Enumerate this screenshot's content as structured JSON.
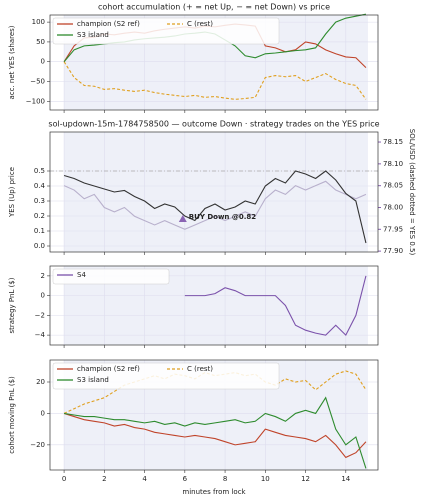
{
  "shared_x": {
    "xlim": [
      -0.7,
      15.6
    ],
    "xticks": [
      0,
      2,
      4,
      6,
      8,
      10,
      12,
      14
    ],
    "xlabel": "minutes from lock",
    "span": [
      0,
      15.1
    ],
    "grid": true
  },
  "chart_data": [
    {
      "type": "line",
      "title": "cohort accumulation (+ = net Up, − = net Down) vs price",
      "ylabel": "acc. net YES (shares)",
      "ylim": [
        -122,
        118
      ],
      "yticks": [
        100,
        50,
        0,
        {
          "value": -50,
          "label": "−50"
        },
        {
          "value": -100,
          "label": "−100"
        }
      ],
      "legend": "upper left",
      "x": [
        0,
        0.5,
        1,
        1.5,
        2,
        2.5,
        3,
        3.5,
        4,
        4.5,
        5,
        5.5,
        6,
        6.5,
        7,
        7.5,
        8,
        8.5,
        9,
        9.5,
        10,
        10.5,
        11,
        11.5,
        12,
        12.5,
        13,
        13.5,
        14,
        14.5,
        15
      ],
      "series": [
        {
          "name": "champion (S2 ref)",
          "color": "#c0442a",
          "linestyle": "solid",
          "values": [
            0,
            40,
            60,
            62,
            70,
            68,
            72,
            75,
            72,
            78,
            82,
            85,
            88,
            85,
            90,
            88,
            92,
            95,
            93,
            90,
            40,
            35,
            25,
            30,
            50,
            45,
            30,
            20,
            12,
            10,
            -15
          ]
        },
        {
          "name": "C (rest)",
          "color": "#e0a020",
          "linestyle": "dashed",
          "values": [
            0,
            -40,
            -60,
            -62,
            -70,
            -68,
            -72,
            -75,
            -72,
            -78,
            -82,
            -85,
            -88,
            -85,
            -90,
            -88,
            -92,
            -95,
            -93,
            -90,
            -40,
            -35,
            -38,
            -35,
            -50,
            -40,
            -30,
            -45,
            -55,
            -60,
            -95
          ]
        },
        {
          "name": "S3 island",
          "color": "#2e8b2e",
          "linestyle": "solid",
          "values": [
            0,
            30,
            40,
            42,
            45,
            48,
            50,
            55,
            58,
            60,
            62,
            65,
            70,
            72,
            75,
            70,
            55,
            40,
            15,
            10,
            20,
            22,
            25,
            28,
            30,
            35,
            70,
            100,
            110,
            115,
            120
          ]
        }
      ]
    },
    {
      "type": "line",
      "title": "sol-updown-15m-1784758500 — outcome Down · strategy trades on the YES price",
      "ylabel": "YES (Up) price",
      "ylim": [
        -0.04,
        0.76
      ],
      "yticks": [
        {
          "value": 0,
          "label": "0.0"
        },
        0.1,
        0.2,
        0.3,
        0.4,
        0.5
      ],
      "y2label": "SOL/USD (dashed dotted = YES 0.5)",
      "y2color": "#8a63b3",
      "y2lim": [
        77.898,
        78.173
      ],
      "y2ticks": [
        {
          "value": 77.9,
          "label": "77.90"
        },
        {
          "value": 77.95,
          "label": "77.95"
        },
        {
          "value": 78,
          "label": "78.00"
        },
        {
          "value": 78.05,
          "label": "78.05"
        },
        {
          "value": 78.1,
          "label": "78.10"
        },
        {
          "value": 78.15,
          "label": "78.15"
        }
      ],
      "hline": 0.5,
      "x": [
        0,
        0.5,
        1,
        1.5,
        2,
        2.5,
        3,
        3.5,
        4,
        4.5,
        5,
        5.5,
        6,
        6.5,
        7,
        7.5,
        8,
        8.5,
        9,
        9.5,
        10,
        10.5,
        11,
        11.5,
        12,
        12.5,
        13,
        13.5,
        14,
        14.5,
        15
      ],
      "series": [
        {
          "color": "#b8b0cc",
          "linestyle": "solid",
          "axis": "y2",
          "values": [
            78.05,
            78.04,
            78.02,
            78.03,
            78,
            77.99,
            78,
            77.98,
            77.97,
            77.96,
            77.97,
            77.96,
            77.95,
            77.96,
            77.97,
            77.98,
            77.97,
            77.98,
            77.99,
            77.98,
            78.02,
            78.04,
            78.03,
            78.05,
            78.04,
            78.05,
            78.06,
            78.04,
            78.03,
            78.02,
            78.03
          ]
        },
        {
          "color": "#333333",
          "linestyle": "solid",
          "values": [
            0.47,
            0.45,
            0.42,
            0.4,
            0.38,
            0.36,
            0.37,
            0.33,
            0.3,
            0.25,
            0.28,
            0.26,
            0.2,
            0.17,
            0.25,
            0.28,
            0.24,
            0.26,
            0.3,
            0.28,
            0.4,
            0.45,
            0.42,
            0.5,
            0.48,
            0.45,
            0.5,
            0.44,
            0.35,
            0.3,
            0.02
          ]
        }
      ],
      "annotations": [
        {
          "text": "BUY Down @0.82",
          "x": 5.9,
          "y": 0.18,
          "color": "#8a63b3"
        }
      ]
    },
    {
      "type": "line",
      "ylabel": "strategy PnL ($)",
      "ylim": [
        -5,
        3
      ],
      "yticks": [
        2,
        0,
        {
          "value": -2,
          "label": "−2"
        },
        {
          "value": -4,
          "label": "−4"
        }
      ],
      "legend": "upper left",
      "series": [
        {
          "name": "S4",
          "color": "#7b52ab",
          "linestyle": "solid",
          "x": [
            6,
            6.5,
            7,
            7.5,
            8,
            8.5,
            9,
            9.5,
            10,
            10.5,
            11,
            11.5,
            12,
            12.5,
            13,
            13.5,
            14,
            14.5,
            15
          ],
          "values": [
            0,
            0,
            0,
            0.2,
            0.8,
            0.5,
            0,
            0,
            0,
            0,
            -1,
            -3,
            -3.5,
            -3.8,
            -4,
            -3,
            -4,
            -2,
            2
          ]
        }
      ]
    },
    {
      "type": "line",
      "ylabel": "cohort moving PnL ($)",
      "ylim": [
        -36,
        34
      ],
      "yticks": [
        20,
        0,
        {
          "value": -20,
          "label": "−20"
        }
      ],
      "legend": "upper left",
      "x": [
        0,
        0.5,
        1,
        1.5,
        2,
        2.5,
        3,
        3.5,
        4,
        4.5,
        5,
        5.5,
        6,
        6.5,
        7,
        7.5,
        8,
        8.5,
        9,
        9.5,
        10,
        10.5,
        11,
        11.5,
        12,
        12.5,
        13,
        13.5,
        14,
        14.5,
        15
      ],
      "series": [
        {
          "name": "champion (S2 ref)",
          "color": "#c0442a",
          "linestyle": "solid",
          "values": [
            0,
            -2,
            -4,
            -5,
            -6,
            -8,
            -7,
            -9,
            -10,
            -12,
            -13,
            -14,
            -15,
            -14,
            -15,
            -16,
            -18,
            -20,
            -19,
            -18,
            -10,
            -12,
            -14,
            -15,
            -16,
            -18,
            -14,
            -20,
            -28,
            -25,
            -18
          ]
        },
        {
          "name": "C (rest)",
          "color": "#e0a020",
          "linestyle": "dashed",
          "values": [
            0,
            3,
            6,
            8,
            10,
            14,
            18,
            20,
            22,
            24,
            22,
            25,
            24,
            22,
            26,
            24,
            25,
            26,
            24,
            25,
            20,
            18,
            22,
            20,
            21,
            15,
            20,
            25,
            27,
            25,
            15
          ]
        },
        {
          "name": "S3 island",
          "color": "#2e8b2e",
          "linestyle": "solid",
          "values": [
            0,
            -1,
            -2,
            -2,
            -3,
            -4,
            -4,
            -5,
            -6,
            -5,
            -7,
            -6,
            -8,
            -6,
            -7,
            -6,
            -5,
            -4,
            -6,
            -5,
            0,
            -2,
            -5,
            0,
            2,
            0,
            10,
            -10,
            -20,
            -15,
            -35
          ]
        }
      ]
    }
  ]
}
